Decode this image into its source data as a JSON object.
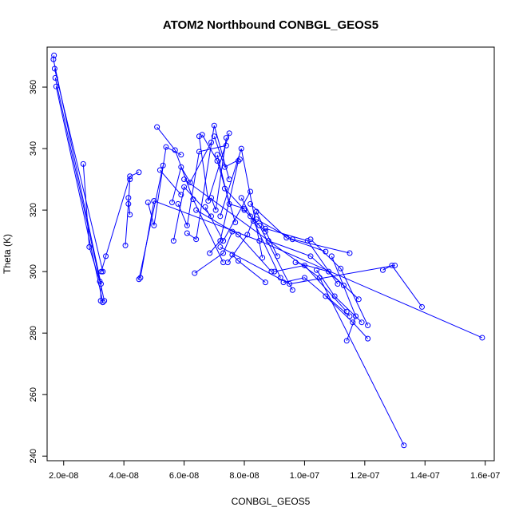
{
  "chart_data": {
    "type": "scatter",
    "title": "ATOM2 Northbound CONBGL_GEOS5",
    "xlabel": "CONBGL_GEOS5",
    "ylabel": "Theta (K)",
    "xlim": [
      1.45e-08,
      1.63e-07
    ],
    "ylim": [
      238.5,
      373
    ],
    "x_ticks": [
      {
        "value": 2e-08,
        "label": "2.0e-08"
      },
      {
        "value": 4e-08,
        "label": "4.0e-08"
      },
      {
        "value": 6e-08,
        "label": "6.0e-08"
      },
      {
        "value": 8e-08,
        "label": "8.0e-08"
      },
      {
        "value": 1e-07,
        "label": "1.0e-07"
      },
      {
        "value": 1.2e-07,
        "label": "1.2e-07"
      },
      {
        "value": 1.4e-07,
        "label": "1.4e-07"
      },
      {
        "value": 1.6e-07,
        "label": "1.6e-07"
      }
    ],
    "y_ticks": [
      {
        "value": 240,
        "label": "240"
      },
      {
        "value": 260,
        "label": "260"
      },
      {
        "value": 280,
        "label": "280"
      },
      {
        "value": 300,
        "label": "300"
      },
      {
        "value": 320,
        "label": "320"
      },
      {
        "value": 340,
        "label": "340"
      },
      {
        "value": 360,
        "label": "360"
      }
    ],
    "color": "#0000ff",
    "grid": false,
    "series": [
      {
        "points": [
          [
            1.68e-08,
            370.3
          ],
          [
            1.66e-08,
            369
          ],
          [
            3.24e-08,
            296
          ],
          [
            3.23e-08,
            290.5
          ]
        ]
      },
      {
        "points": [
          [
            1.75e-08,
            360.2
          ],
          [
            3.3e-08,
            290
          ]
        ]
      },
      {
        "points": [
          [
            1.7e-08,
            366
          ],
          [
            3.3e-08,
            300
          ]
        ]
      },
      {
        "points": [
          [
            1.72e-08,
            363
          ],
          [
            3.35e-08,
            290.5
          ]
        ]
      },
      {
        "points": [
          [
            2.65e-08,
            335
          ],
          [
            2.85e-08,
            308
          ],
          [
            3.2e-08,
            296.8
          ]
        ]
      },
      {
        "points": [
          [
            3.25e-08,
            300
          ],
          [
            3.4e-08,
            305
          ],
          [
            4.2e-08,
            331
          ],
          [
            4.5e-08,
            332.3
          ]
        ]
      },
      {
        "points": [
          [
            4.05e-08,
            308.5
          ],
          [
            4.15e-08,
            322
          ],
          [
            4.2e-08,
            330
          ]
        ]
      },
      {
        "points": [
          [
            4.15e-08,
            324
          ],
          [
            4.2e-08,
            318.5
          ]
        ]
      },
      {
        "points": [
          [
            4.5e-08,
            297.5
          ],
          [
            5.3e-08,
            334.5
          ]
        ]
      },
      {
        "points": [
          [
            4.55e-08,
            298
          ],
          [
            5e-08,
            323
          ]
        ]
      },
      {
        "points": [
          [
            4.8e-08,
            322.5
          ],
          [
            5e-08,
            315
          ],
          [
            5.4e-08,
            340.5
          ],
          [
            5.9e-08,
            338
          ]
        ]
      },
      {
        "points": [
          [
            5.1e-08,
            347
          ],
          [
            5.7e-08,
            339.5
          ],
          [
            6.3e-08,
            323.5
          ],
          [
            7.3e-08,
            303
          ]
        ]
      },
      {
        "points": [
          [
            5.2e-08,
            333
          ],
          [
            5.9e-08,
            325
          ]
        ]
      },
      {
        "points": [
          [
            5.6e-08,
            322.5
          ],
          [
            5.9e-08,
            334
          ],
          [
            6.2e-08,
            329
          ],
          [
            6.9e-08,
            342
          ]
        ]
      },
      {
        "points": [
          [
            5.65e-08,
            310
          ],
          [
            6e-08,
            327.5
          ],
          [
            6.9e-08,
            318
          ]
        ]
      },
      {
        "points": [
          [
            5.8e-08,
            322
          ],
          [
            6.1e-08,
            315
          ],
          [
            6.5e-08,
            339
          ],
          [
            7.4e-08,
            341
          ]
        ]
      },
      {
        "points": [
          [
            6.1e-08,
            312.5
          ],
          [
            6.4e-08,
            310.5
          ],
          [
            7e-08,
            347.5
          ],
          [
            7.5e-08,
            330
          ]
        ]
      },
      {
        "points": [
          [
            6.35e-08,
            299.5
          ],
          [
            7.3e-08,
            306
          ],
          [
            7.6e-08,
            313
          ]
        ]
      },
      {
        "points": [
          [
            6.5e-08,
            344
          ],
          [
            6.8e-08,
            323
          ],
          [
            7.5e-08,
            345
          ]
        ]
      },
      {
        "points": [
          [
            6.6e-08,
            344.5
          ],
          [
            7.1e-08,
            336
          ],
          [
            7.7e-08,
            316
          ]
        ]
      },
      {
        "points": [
          [
            6.7e-08,
            321
          ],
          [
            7.3e-08,
            310
          ],
          [
            8.2e-08,
            326
          ]
        ]
      },
      {
        "points": [
          [
            6.85e-08,
            306
          ],
          [
            7.2e-08,
            310
          ],
          [
            7.8e-08,
            336
          ]
        ]
      },
      {
        "points": [
          [
            6.9e-08,
            324
          ],
          [
            7.05e-08,
            320
          ],
          [
            7.4e-08,
            343.5
          ]
        ]
      },
      {
        "points": [
          [
            7e-08,
            344
          ],
          [
            7.35e-08,
            334
          ],
          [
            7.85e-08,
            336.5
          ]
        ]
      },
      {
        "points": [
          [
            7.1e-08,
            338
          ],
          [
            7.5e-08,
            322
          ],
          [
            8e-08,
            320.5
          ]
        ]
      },
      {
        "points": [
          [
            7.2e-08,
            318
          ],
          [
            7.9e-08,
            340
          ],
          [
            8.6e-08,
            304.5
          ]
        ]
      },
      {
        "points": [
          [
            7.45e-08,
            303
          ],
          [
            8.1e-08,
            312
          ],
          [
            8.4e-08,
            319.5
          ],
          [
            9.1e-08,
            305
          ]
        ]
      },
      {
        "points": [
          [
            7.6e-08,
            305.5
          ],
          [
            7.8e-08,
            303.5
          ],
          [
            8.7e-08,
            296.5
          ]
        ]
      },
      {
        "points": [
          [
            7.9e-08,
            324
          ],
          [
            8.3e-08,
            316.5
          ],
          [
            9.2e-08,
            298
          ]
        ]
      },
      {
        "points": [
          [
            8e-08,
            320
          ],
          [
            8.5e-08,
            315
          ],
          [
            9.6e-08,
            294
          ]
        ]
      },
      {
        "points": [
          [
            8.2e-08,
            322
          ],
          [
            9.4e-08,
            311
          ],
          [
            1.07e-07,
            306.5
          ]
        ]
      },
      {
        "points": [
          [
            8.4e-08,
            317
          ],
          [
            9.6e-08,
            310.5
          ],
          [
            1.15e-07,
            306
          ]
        ]
      },
      {
        "points": [
          [
            8.7e-08,
            314
          ],
          [
            1.01e-07,
            310
          ],
          [
            1.11e-07,
            296
          ]
        ]
      },
      {
        "points": [
          [
            8.8e-08,
            310
          ],
          [
            1.02e-07,
            305
          ],
          [
            1.13e-07,
            295.5
          ]
        ]
      },
      {
        "points": [
          [
            9e-08,
            300
          ],
          [
            1e-07,
            302
          ],
          [
            1.14e-07,
            287
          ]
        ]
      },
      {
        "points": [
          [
            9.3e-08,
            296.5
          ],
          [
            1e-07,
            298
          ],
          [
            1.15e-07,
            285.5
          ]
        ]
      },
      {
        "points": [
          [
            9.7e-08,
            303
          ],
          [
            1.08e-07,
            300
          ],
          [
            1.18e-07,
            291
          ]
        ]
      },
      {
        "points": [
          [
            1.02e-07,
            310.5
          ],
          [
            1.12e-07,
            301
          ],
          [
            1.21e-07,
            282.5
          ]
        ]
      },
      {
        "points": [
          [
            1.04e-07,
            300.5
          ],
          [
            1.1e-07,
            292
          ],
          [
            1.19e-07,
            283.5
          ]
        ]
      },
      {
        "points": [
          [
            1.07e-07,
            292
          ],
          [
            1.16e-07,
            283.5
          ],
          [
            1.21e-07,
            278.2
          ]
        ]
      },
      {
        "points": [
          [
            1.09e-07,
            305
          ],
          [
            1.17e-07,
            285.5
          ],
          [
            1.14e-07,
            277.5
          ]
        ]
      },
      {
        "points": [
          [
            1.26e-07,
            300.5
          ],
          [
            1.29e-07,
            302
          ],
          [
            1.39e-07,
            288.5
          ]
        ]
      },
      {
        "points": [
          [
            5e-08,
            323
          ],
          [
            8.5e-08,
            310
          ],
          [
            1.59e-07,
            278.5
          ]
        ]
      },
      {
        "points": [
          [
            6e-08,
            330
          ],
          [
            1.05e-07,
            298
          ],
          [
            1.33e-07,
            243.5
          ]
        ]
      },
      {
        "points": [
          [
            7.2e-08,
            308
          ],
          [
            9.5e-08,
            296
          ],
          [
            1.3e-07,
            302
          ]
        ]
      },
      {
        "points": [
          [
            6.4e-08,
            320
          ],
          [
            7.8e-08,
            312
          ],
          [
            8.9e-08,
            300
          ]
        ]
      },
      {
        "points": [
          [
            7.35e-08,
            327
          ],
          [
            8.2e-08,
            318
          ],
          [
            8.7e-08,
            313
          ]
        ]
      }
    ]
  }
}
